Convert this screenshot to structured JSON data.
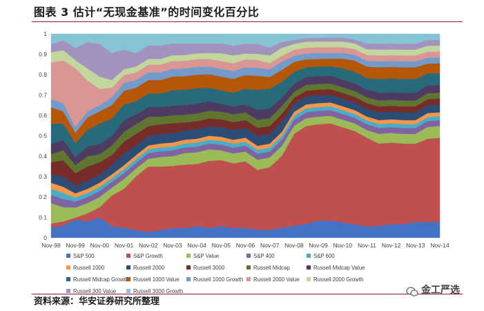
{
  "header": {
    "title": "图表 3 估计“无现金基准”的时间变化百分比"
  },
  "footer": {
    "source": "资料来源：华安证券研究所整理",
    "watermark": "金工严选"
  },
  "chart_data": {
    "type": "area",
    "stacked": true,
    "normalized": true,
    "title": "",
    "xlabel": "",
    "ylabel": "",
    "ylim": [
      0,
      1
    ],
    "y_ticks": [
      "0",
      "0.1",
      "0.2",
      "0.3",
      "0.4",
      "0.5",
      "0.6",
      "0.7",
      "0.8",
      "0.9",
      "1"
    ],
    "x_ticks": [
      "Nov-98",
      "Nov-99",
      "Nov-00",
      "Nov-01",
      "Nov-02",
      "Nov-03",
      "Nov-04",
      "Nov-05",
      "Nov-06",
      "Nov-07",
      "Nov-08",
      "Nov-09",
      "Nov-10",
      "Nov-11",
      "Nov-12",
      "Nov-13",
      "Nov-14"
    ],
    "x": [
      "Nov-98",
      "May-99",
      "Nov-99",
      "May-00",
      "Nov-00",
      "May-01",
      "Nov-01",
      "May-02",
      "Nov-02",
      "May-03",
      "Nov-03",
      "May-04",
      "Nov-04",
      "May-05",
      "Nov-05",
      "May-06",
      "Nov-06",
      "May-07",
      "Nov-07",
      "May-08",
      "Nov-08",
      "May-09",
      "Nov-09",
      "May-10",
      "Nov-10",
      "May-11",
      "Nov-11",
      "May-12",
      "Nov-12",
      "May-13",
      "Nov-13",
      "May-14",
      "Nov-14"
    ],
    "grid": false,
    "legend_position": "bottom",
    "series": [
      {
        "name": "S&P 500",
        "color": "#4472c4",
        "values": [
          0.05,
          0.06,
          0.09,
          0.08,
          0.1,
          0.06,
          0.05,
          0.04,
          0.03,
          0.04,
          0.05,
          0.05,
          0.06,
          0.05,
          0.06,
          0.05,
          0.05,
          0.04,
          0.04,
          0.05,
          0.06,
          0.07,
          0.09,
          0.09,
          0.08,
          0.07,
          0.06,
          0.06,
          0.07,
          0.07,
          0.08,
          0.08,
          0.08
        ]
      },
      {
        "name": "S&P Growth",
        "color": "#c0504d",
        "values": [
          0.02,
          0.02,
          0.01,
          0.04,
          0.05,
          0.16,
          0.2,
          0.28,
          0.34,
          0.33,
          0.32,
          0.33,
          0.32,
          0.35,
          0.34,
          0.33,
          0.34,
          0.3,
          0.32,
          0.36,
          0.46,
          0.5,
          0.5,
          0.51,
          0.5,
          0.49,
          0.46,
          0.42,
          0.42,
          0.41,
          0.4,
          0.42,
          0.43
        ]
      },
      {
        "name": "S&P Value",
        "color": "#9bbb59",
        "values": [
          0.1,
          0.07,
          0.05,
          0.05,
          0.05,
          0.04,
          0.05,
          0.04,
          0.04,
          0.05,
          0.05,
          0.06,
          0.06,
          0.06,
          0.05,
          0.05,
          0.05,
          0.05,
          0.05,
          0.05,
          0.04,
          0.04,
          0.04,
          0.04,
          0.04,
          0.04,
          0.04,
          0.05,
          0.05,
          0.05,
          0.05,
          0.06,
          0.06
        ]
      },
      {
        "name": "S&P 400",
        "color": "#8064a2",
        "values": [
          0.04,
          0.04,
          0.03,
          0.03,
          0.03,
          0.03,
          0.03,
          0.03,
          0.03,
          0.03,
          0.03,
          0.03,
          0.03,
          0.03,
          0.03,
          0.03,
          0.03,
          0.03,
          0.03,
          0.03,
          0.03,
          0.03,
          0.03,
          0.03,
          0.03,
          0.03,
          0.03,
          0.03,
          0.03,
          0.03,
          0.03,
          0.03,
          0.03
        ]
      },
      {
        "name": "S&P 600",
        "color": "#4bacc6",
        "values": [
          0.03,
          0.03,
          0.02,
          0.02,
          0.02,
          0.02,
          0.02,
          0.02,
          0.02,
          0.02,
          0.02,
          0.02,
          0.02,
          0.02,
          0.02,
          0.02,
          0.02,
          0.02,
          0.02,
          0.02,
          0.02,
          0.02,
          0.02,
          0.02,
          0.02,
          0.02,
          0.02,
          0.02,
          0.02,
          0.02,
          0.02,
          0.02,
          0.02
        ]
      },
      {
        "name": "Russell 1000",
        "color": "#f79646",
        "values": [
          0.03,
          0.03,
          0.02,
          0.02,
          0.02,
          0.02,
          0.02,
          0.02,
          0.02,
          0.02,
          0.02,
          0.02,
          0.02,
          0.02,
          0.02,
          0.02,
          0.02,
          0.02,
          0.02,
          0.02,
          0.02,
          0.02,
          0.02,
          0.02,
          0.02,
          0.02,
          0.02,
          0.02,
          0.02,
          0.02,
          0.02,
          0.02,
          0.02
        ]
      },
      {
        "name": "Russell 2000",
        "color": "#2c4d75",
        "values": [
          0.04,
          0.05,
          0.04,
          0.04,
          0.04,
          0.05,
          0.06,
          0.05,
          0.05,
          0.05,
          0.05,
          0.05,
          0.05,
          0.05,
          0.05,
          0.05,
          0.05,
          0.05,
          0.05,
          0.05,
          0.04,
          0.04,
          0.04,
          0.04,
          0.04,
          0.04,
          0.04,
          0.04,
          0.04,
          0.04,
          0.04,
          0.04,
          0.04
        ]
      },
      {
        "name": "Russell 3000",
        "color": "#772c2a",
        "values": [
          0.06,
          0.08,
          0.06,
          0.07,
          0.06,
          0.05,
          0.06,
          0.06,
          0.05,
          0.05,
          0.05,
          0.04,
          0.04,
          0.04,
          0.04,
          0.04,
          0.04,
          0.04,
          0.04,
          0.04,
          0.03,
          0.03,
          0.03,
          0.03,
          0.03,
          0.03,
          0.03,
          0.03,
          0.03,
          0.03,
          0.03,
          0.03,
          0.03
        ]
      },
      {
        "name": "Russell Midcap",
        "color": "#5f7530",
        "values": [
          0.04,
          0.05,
          0.04,
          0.05,
          0.04,
          0.05,
          0.05,
          0.05,
          0.05,
          0.04,
          0.04,
          0.04,
          0.04,
          0.04,
          0.04,
          0.04,
          0.04,
          0.04,
          0.04,
          0.04,
          0.03,
          0.03,
          0.03,
          0.03,
          0.03,
          0.03,
          0.03,
          0.03,
          0.03,
          0.03,
          0.03,
          0.03,
          0.03
        ]
      },
      {
        "name": "Russell Midcap Value",
        "color": "#4d3b62",
        "values": [
          0.05,
          0.05,
          0.04,
          0.05,
          0.05,
          0.05,
          0.06,
          0.05,
          0.05,
          0.05,
          0.05,
          0.05,
          0.05,
          0.05,
          0.04,
          0.04,
          0.04,
          0.05,
          0.05,
          0.04,
          0.04,
          0.04,
          0.04,
          0.04,
          0.04,
          0.04,
          0.04,
          0.04,
          0.04,
          0.04,
          0.04,
          0.04,
          0.04
        ]
      },
      {
        "name": "Russell Midcap Growth",
        "color": "#276a7c",
        "values": [
          0.1,
          0.08,
          0.07,
          0.08,
          0.1,
          0.09,
          0.08,
          0.07,
          0.07,
          0.07,
          0.08,
          0.08,
          0.08,
          0.07,
          0.07,
          0.07,
          0.08,
          0.1,
          0.1,
          0.08,
          0.06,
          0.05,
          0.05,
          0.05,
          0.06,
          0.06,
          0.06,
          0.07,
          0.07,
          0.07,
          0.07,
          0.06,
          0.06
        ]
      },
      {
        "name": "Russell 1000 Value",
        "color": "#b65708",
        "values": [
          0.08,
          0.06,
          0.05,
          0.06,
          0.06,
          0.07,
          0.07,
          0.07,
          0.07,
          0.07,
          0.07,
          0.07,
          0.07,
          0.07,
          0.07,
          0.07,
          0.07,
          0.07,
          0.06,
          0.06,
          0.05,
          0.04,
          0.04,
          0.04,
          0.05,
          0.06,
          0.06,
          0.06,
          0.06,
          0.06,
          0.06,
          0.05,
          0.05
        ]
      },
      {
        "name": "Russell 1000 Growth",
        "color": "#729aca",
        "values": [
          0.04,
          0.04,
          0.03,
          0.03,
          0.03,
          0.04,
          0.04,
          0.04,
          0.04,
          0.04,
          0.04,
          0.04,
          0.04,
          0.04,
          0.04,
          0.04,
          0.04,
          0.04,
          0.04,
          0.04,
          0.03,
          0.03,
          0.03,
          0.03,
          0.03,
          0.03,
          0.03,
          0.03,
          0.03,
          0.03,
          0.03,
          0.03,
          0.03
        ]
      },
      {
        "name": "Russell 2000 Value",
        "color": "#d99694",
        "values": [
          0.18,
          0.21,
          0.29,
          0.15,
          0.08,
          0.05,
          0.04,
          0.04,
          0.04,
          0.04,
          0.04,
          0.04,
          0.04,
          0.04,
          0.04,
          0.04,
          0.04,
          0.04,
          0.03,
          0.03,
          0.03,
          0.03,
          0.03,
          0.03,
          0.03,
          0.03,
          0.03,
          0.03,
          0.03,
          0.03,
          0.03,
          0.03,
          0.03
        ]
      },
      {
        "name": "Russell 2000 Growth",
        "color": "#c3d69b",
        "values": [
          0.05,
          0.05,
          0.04,
          0.06,
          0.06,
          0.04,
          0.03,
          0.03,
          0.03,
          0.03,
          0.03,
          0.03,
          0.03,
          0.03,
          0.04,
          0.04,
          0.03,
          0.03,
          0.04,
          0.04,
          0.03,
          0.03,
          0.03,
          0.03,
          0.03,
          0.03,
          0.03,
          0.03,
          0.03,
          0.03,
          0.03,
          0.03,
          0.03
        ]
      },
      {
        "name": "Russell 300 Value",
        "color": "#a193be",
        "values": [
          0.04,
          0.05,
          0.06,
          0.13,
          0.16,
          0.14,
          0.1,
          0.07,
          0.07,
          0.07,
          0.06,
          0.06,
          0.05,
          0.05,
          0.05,
          0.05,
          0.05,
          0.05,
          0.04,
          0.03,
          0.02,
          0.02,
          0.02,
          0.02,
          0.02,
          0.02,
          0.03,
          0.03,
          0.03,
          0.03,
          0.03,
          0.03,
          0.03
        ]
      },
      {
        "name": "Russell 3000 Growth",
        "color": "#86c3d6",
        "values": [
          0.05,
          0.03,
          0.07,
          0.04,
          0.05,
          0.1,
          0.08,
          0.1,
          0.06,
          0.06,
          0.05,
          0.05,
          0.05,
          0.05,
          0.05,
          0.06,
          0.05,
          0.05,
          0.07,
          0.04,
          0.03,
          0.02,
          0.02,
          0.02,
          0.02,
          0.03,
          0.05,
          0.05,
          0.05,
          0.05,
          0.05,
          0.03,
          0.03
        ]
      }
    ]
  }
}
